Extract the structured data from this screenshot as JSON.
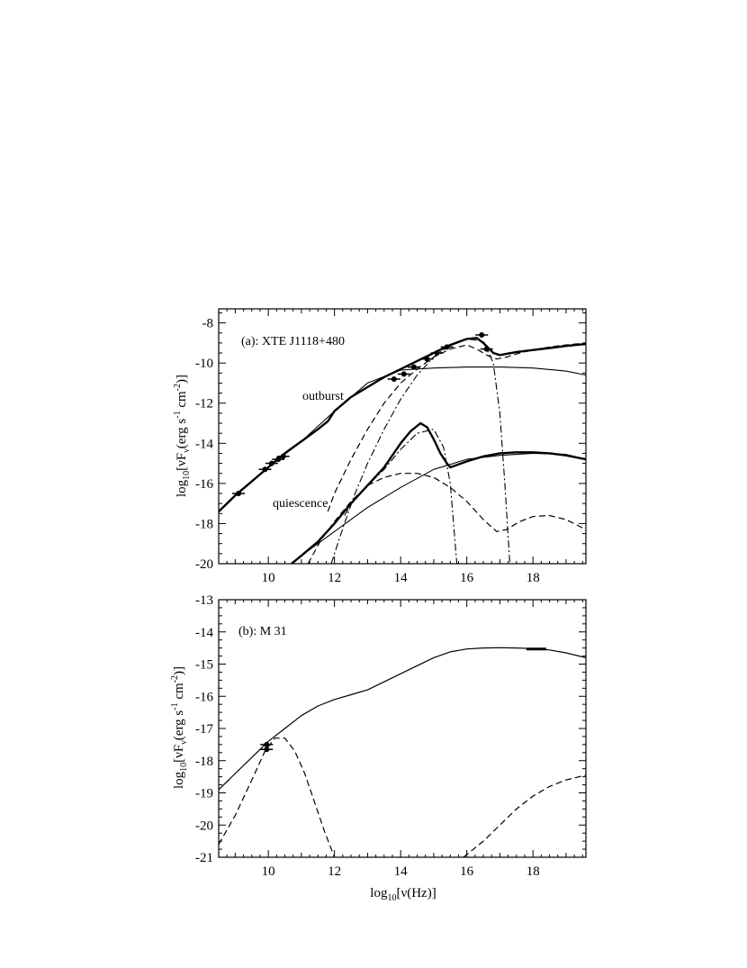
{
  "chart_data": [
    {
      "type": "line",
      "panel": "a",
      "title": "(a): XTE J1118+480",
      "xlabel": "",
      "ylabel": "log10[νFν(erg s^-1 cm^-2)]",
      "ylabel_parts": {
        "pre": "log",
        "sub1": "10",
        "mid": "[νF",
        "sub2": "ν",
        "post": "(erg s",
        "sup1": "-1",
        "cm": " cm",
        "sup2": "-2",
        "end": ")]"
      },
      "xlim": [
        8.5,
        19.6
      ],
      "ylim": [
        -20,
        -7.3
      ],
      "xticks": [
        10,
        12,
        14,
        16,
        18
      ],
      "yticks": [
        -20,
        -18,
        -16,
        -14,
        -12,
        -10,
        -8
      ],
      "annotations": [
        {
          "text": "outburst",
          "x": 11.25,
          "y": -11.0
        },
        {
          "text": "quiescence",
          "x": 10.8,
          "y": -16.75
        }
      ],
      "series": [
        {
          "style": "thick",
          "x": [
            8.5,
            9.0,
            9.5,
            10.0,
            10.5,
            11.0,
            11.5,
            11.8,
            12.0,
            12.5,
            13.0,
            13.5,
            14.0,
            14.5,
            15.0,
            15.5,
            16.0,
            16.3,
            16.5,
            16.8,
            17.0,
            17.5,
            18.0,
            18.5,
            19.0,
            19.6
          ],
          "y": [
            -17.4,
            -16.6,
            -15.9,
            -15.2,
            -14.5,
            -13.9,
            -13.3,
            -12.9,
            -12.4,
            -11.7,
            -11.2,
            -10.7,
            -10.3,
            -9.9,
            -9.5,
            -9.1,
            -8.8,
            -8.75,
            -9.0,
            -9.5,
            -9.6,
            -9.45,
            -9.35,
            -9.25,
            -9.15,
            -9.05
          ]
        },
        {
          "style": "thin",
          "x": [
            8.5,
            9.0,
            10.0,
            11.0,
            12.0,
            13.0,
            14.0,
            15.0,
            16.0,
            17.0,
            18.0,
            19.0,
            19.6
          ],
          "y": [
            -17.4,
            -16.6,
            -15.2,
            -13.9,
            -12.4,
            -11.0,
            -10.35,
            -10.25,
            -10.2,
            -10.2,
            -10.25,
            -10.4,
            -10.6
          ]
        },
        {
          "style": "thick",
          "x": [
            10.7,
            11.0,
            11.5,
            12.0,
            12.5,
            13.0,
            13.5,
            14.0,
            14.3,
            14.6,
            14.8,
            15.0,
            15.2,
            15.4,
            15.5,
            16.0,
            16.5,
            17.0,
            17.5,
            18.0,
            18.5,
            19.0,
            19.6
          ],
          "y": [
            -20.0,
            -19.6,
            -18.9,
            -18.0,
            -17.0,
            -16.1,
            -15.2,
            -14.0,
            -13.4,
            -13.0,
            -13.2,
            -13.8,
            -14.5,
            -15.0,
            -15.2,
            -14.9,
            -14.65,
            -14.5,
            -14.45,
            -14.45,
            -14.5,
            -14.6,
            -14.8
          ]
        },
        {
          "style": "thin",
          "x": [
            10.7,
            11.0,
            12.0,
            13.0,
            14.0,
            15.0,
            16.0,
            17.0,
            18.0,
            19.0,
            19.6
          ],
          "y": [
            -20.0,
            -19.6,
            -18.4,
            -17.2,
            -16.2,
            -15.3,
            -14.8,
            -14.6,
            -14.5,
            -14.55,
            -14.8
          ]
        },
        {
          "style": "dashed",
          "x": [
            11.2,
            11.6,
            12.0,
            12.5,
            13.0,
            13.5,
            14.0,
            14.5,
            15.0,
            15.5,
            16.0,
            16.5,
            16.9,
            17.2,
            17.6,
            18.0,
            18.5,
            19.0,
            19.6
          ],
          "y": [
            -20.0,
            -18.8,
            -17.9,
            -16.9,
            -16.1,
            -15.7,
            -15.5,
            -15.5,
            -15.7,
            -16.2,
            -16.9,
            -17.8,
            -18.4,
            -18.3,
            -17.9,
            -17.65,
            -17.6,
            -17.8,
            -18.3
          ]
        },
        {
          "style": "dashed",
          "x": [
            11.8,
            12.0,
            12.5,
            13.0,
            13.5,
            14.0,
            14.5,
            15.0,
            15.5,
            16.0,
            16.3,
            16.6,
            16.9,
            17.2,
            17.6,
            18.0,
            18.5,
            19.0,
            19.6
          ],
          "y": [
            -17.4,
            -16.5,
            -14.8,
            -13.3,
            -12.0,
            -11.0,
            -10.3,
            -9.7,
            -9.3,
            -9.1,
            -9.3,
            -9.6,
            -9.8,
            -9.7,
            -9.5,
            -9.35,
            -9.2,
            -9.1,
            -9.0
          ]
        },
        {
          "style": "dashdot",
          "x": [
            11.9,
            12.3,
            12.6,
            13.0,
            13.5,
            14.0,
            14.5,
            15.0,
            15.5,
            16.0,
            16.5,
            16.8,
            17.0,
            17.15,
            17.3
          ],
          "y": [
            -20.0,
            -18.0,
            -16.6,
            -15.0,
            -13.3,
            -11.8,
            -10.6,
            -9.7,
            -9.1,
            -8.8,
            -8.9,
            -10.0,
            -12.5,
            -16.0,
            -20.0
          ]
        },
        {
          "style": "dashdot",
          "x": [
            12.3,
            12.6,
            13.0,
            13.5,
            14.0,
            14.5,
            15.0,
            15.3,
            15.5,
            15.7
          ],
          "y": [
            -17.6,
            -16.8,
            -16.1,
            -15.3,
            -14.3,
            -13.5,
            -13.3,
            -14.2,
            -16.0,
            -20.0
          ]
        }
      ],
      "data_points": [
        {
          "x": 9.1,
          "y": -16.5
        },
        {
          "x": 9.9,
          "y": -15.3
        },
        {
          "x": 10.1,
          "y": -15.0
        },
        {
          "x": 10.3,
          "y": -14.8
        },
        {
          "x": 10.45,
          "y": -14.65
        },
        {
          "x": 13.8,
          "y": -10.8
        },
        {
          "x": 14.1,
          "y": -10.55
        },
        {
          "x": 14.4,
          "y": -10.2
        },
        {
          "x": 14.8,
          "y": -9.8
        },
        {
          "x": 15.1,
          "y": -9.5
        },
        {
          "x": 15.4,
          "y": -9.2
        },
        {
          "x": 16.45,
          "y": -8.6
        },
        {
          "x": 16.6,
          "y": -9.3
        }
      ]
    },
    {
      "type": "line",
      "panel": "b",
      "title": "(b): M 31",
      "xlabel": "log10[ν(Hz)]",
      "xlabel_parts": {
        "pre": "log",
        "sub": "10",
        "post": "[ν(Hz)]"
      },
      "ylabel": "log10[νFν(erg s^-1 cm^-2)]",
      "ylabel_parts": {
        "pre": "log",
        "sub1": "10",
        "mid": "[νF",
        "sub2": "ν",
        "post": "(erg s",
        "sup1": "-1",
        "cm": " cm",
        "sup2": "-2",
        "end": ")]"
      },
      "xlim": [
        8.5,
        19.6
      ],
      "ylim": [
        -21,
        -13
      ],
      "xticks": [
        10,
        12,
        14,
        16,
        18
      ],
      "yticks": [
        -21,
        -20,
        -19,
        -18,
        -17,
        -16,
        -15,
        -14,
        -13
      ],
      "series": [
        {
          "style": "solid",
          "x": [
            8.5,
            9.0,
            9.5,
            10.0,
            10.5,
            11.0,
            11.5,
            12.0,
            12.5,
            13.0,
            13.5,
            14.0,
            14.5,
            15.0,
            15.5,
            16.0,
            16.5,
            17.0,
            17.5,
            18.0,
            18.5,
            19.0,
            19.6
          ],
          "y": [
            -18.9,
            -18.4,
            -17.9,
            -17.4,
            -17.0,
            -16.6,
            -16.3,
            -16.1,
            -15.95,
            -15.8,
            -15.55,
            -15.3,
            -15.05,
            -14.8,
            -14.62,
            -14.53,
            -14.5,
            -14.49,
            -14.5,
            -14.52,
            -14.56,
            -14.65,
            -14.8
          ]
        },
        {
          "style": "dashed",
          "x": [
            8.5,
            9.0,
            9.5,
            9.9,
            10.2,
            10.5,
            10.8,
            11.1,
            11.4,
            11.7,
            12.0
          ],
          "y": [
            -20.6,
            -19.7,
            -18.6,
            -17.7,
            -17.3,
            -17.3,
            -17.7,
            -18.4,
            -19.3,
            -20.2,
            -21.0
          ]
        },
        {
          "style": "dashed",
          "x": [
            15.9,
            16.5,
            17.0,
            17.5,
            18.0,
            18.5,
            19.0,
            19.6
          ],
          "y": [
            -21.0,
            -20.5,
            -20.0,
            -19.5,
            -19.1,
            -18.8,
            -18.6,
            -18.45
          ]
        }
      ],
      "data_points": [
        {
          "x": 9.95,
          "y": -17.5
        },
        {
          "x": 9.95,
          "y": -17.65
        }
      ],
      "xray_bar": {
        "x": [
          17.8,
          18.4
        ],
        "y": [
          -14.53,
          -14.53
        ]
      }
    }
  ]
}
